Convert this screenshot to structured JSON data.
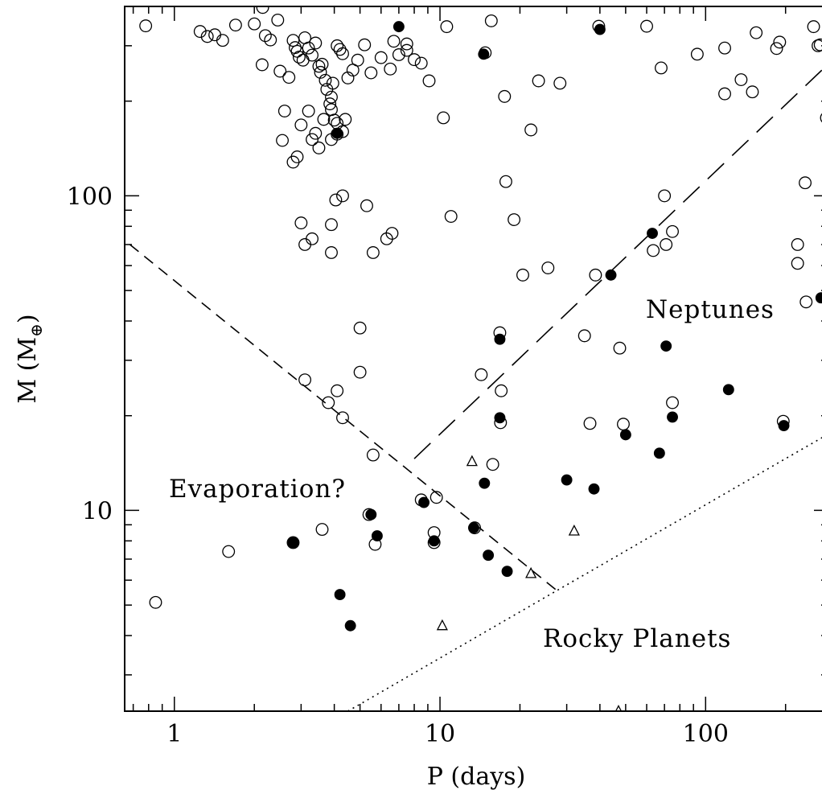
{
  "chart_data": {
    "type": "scatter",
    "xscale": "log",
    "yscale": "log",
    "xlim": [
      0.65,
      290
    ],
    "ylim": [
      2.3,
      400
    ],
    "xlabel": "P (days)",
    "ylabel_main": "M (M",
    "ylabel_sub": "⊕",
    "ylabel_end": ")",
    "x_tick_labels": [
      {
        "value": 1,
        "label": "1"
      },
      {
        "value": 10,
        "label": "10"
      },
      {
        "value": 100,
        "label": "100"
      }
    ],
    "y_tick_labels": [
      {
        "value": 10,
        "label": "10"
      },
      {
        "value": 100,
        "label": "100"
      }
    ],
    "annotations": {
      "evaporation": "Evaporation?",
      "neptunes": "Neptunes",
      "rocky": "Rocky Planets"
    },
    "boundary_lines": [
      {
        "style": "short-dash",
        "points": [
          [
            0.68,
            70
          ],
          [
            28,
            5.5
          ]
        ]
      },
      {
        "style": "long-dash",
        "points": [
          [
            8.0,
            14.6
          ],
          [
            300,
            270
          ]
        ]
      },
      {
        "style": "dotted",
        "points": [
          [
            4.5,
            2.3
          ],
          [
            290,
            17.5
          ]
        ]
      }
    ],
    "series": [
      {
        "marker": "open-circle",
        "points": [
          [
            0.78,
            347
          ],
          [
            1.25,
            333
          ],
          [
            1.33,
            321
          ],
          [
            1.42,
            325
          ],
          [
            1.52,
            312
          ],
          [
            1.7,
            349
          ],
          [
            2.0,
            352
          ],
          [
            2.14,
            261
          ],
          [
            2.2,
            323
          ],
          [
            2.3,
            313
          ],
          [
            2.45,
            362
          ],
          [
            2.5,
            249
          ],
          [
            2.7,
            238
          ],
          [
            2.8,
            312
          ],
          [
            2.85,
            296
          ],
          [
            2.9,
            288
          ],
          [
            2.95,
            276
          ],
          [
            3.05,
            270
          ],
          [
            3.1,
            318
          ],
          [
            3.2,
            295
          ],
          [
            3.3,
            280
          ],
          [
            3.4,
            306
          ],
          [
            3.5,
            258
          ],
          [
            3.55,
            247
          ],
          [
            3.6,
            262
          ],
          [
            3.7,
            233
          ],
          [
            3.75,
            218
          ],
          [
            3.85,
            196
          ],
          [
            3.9,
            206
          ],
          [
            3.95,
            228
          ],
          [
            4.1,
            300
          ],
          [
            4.2,
            292
          ],
          [
            4.3,
            283
          ],
          [
            4.5,
            237
          ],
          [
            4.7,
            251
          ],
          [
            4.9,
            270
          ],
          [
            5.2,
            302
          ],
          [
            5.5,
            246
          ],
          [
            6.0,
            275
          ],
          [
            6.5,
            253
          ],
          [
            7.0,
            281
          ],
          [
            7.5,
            304
          ],
          [
            8.0,
            271
          ],
          [
            8.5,
            264
          ],
          [
            2.15,
            397
          ],
          [
            2.6,
            186
          ],
          [
            2.55,
            150
          ],
          [
            2.8,
            128
          ],
          [
            2.9,
            133
          ],
          [
            3.0,
            168
          ],
          [
            3.2,
            186
          ],
          [
            3.4,
            158
          ],
          [
            3.5,
            142
          ],
          [
            3.65,
            175
          ],
          [
            3.9,
            188
          ],
          [
            3.9,
            151
          ],
          [
            4.0,
            174
          ],
          [
            4.1,
            157
          ],
          [
            4.3,
            160
          ],
          [
            4.4,
            175
          ],
          [
            4.1,
            170
          ],
          [
            3.3,
            151
          ],
          [
            4.05,
            97
          ],
          [
            4.3,
            100
          ],
          [
            5.3,
            93
          ],
          [
            3.0,
            82
          ],
          [
            3.9,
            81
          ],
          [
            3.3,
            73
          ],
          [
            3.1,
            70
          ],
          [
            3.9,
            66
          ],
          [
            5.6,
            66
          ],
          [
            6.3,
            73
          ],
          [
            6.6,
            76
          ],
          [
            6.7,
            310
          ],
          [
            7.5,
            290
          ],
          [
            9.1,
            232
          ],
          [
            10.3,
            177
          ],
          [
            10.6,
            345
          ],
          [
            11.0,
            86
          ],
          [
            14.8,
            285
          ],
          [
            15.6,
            360
          ],
          [
            17.5,
            207
          ],
          [
            17.7,
            111
          ],
          [
            19.0,
            84
          ],
          [
            20.5,
            56
          ],
          [
            22.0,
            162
          ],
          [
            23.5,
            232
          ],
          [
            25.5,
            59
          ],
          [
            28.3,
            228
          ],
          [
            39.6,
            346
          ],
          [
            38.5,
            56
          ],
          [
            35.0,
            35.9
          ],
          [
            47.5,
            32.8
          ],
          [
            60.0,
            346
          ],
          [
            63.5,
            67
          ],
          [
            70.0,
            100
          ],
          [
            68.0,
            255
          ],
          [
            71.0,
            70
          ],
          [
            75.0,
            77
          ],
          [
            93.0,
            282
          ],
          [
            118,
            211
          ],
          [
            118,
            295
          ],
          [
            136,
            234
          ],
          [
            150,
            214
          ],
          [
            155,
            330
          ],
          [
            185,
            294
          ],
          [
            190,
            308
          ],
          [
            222,
            70
          ],
          [
            222,
            61
          ],
          [
            237,
            110
          ],
          [
            255,
            345
          ],
          [
            265,
            300
          ],
          [
            270,
            302
          ],
          [
            285,
            177
          ],
          [
            5.0,
            38
          ],
          [
            5.0,
            27.5
          ],
          [
            3.1,
            26
          ],
          [
            4.1,
            24
          ],
          [
            3.8,
            22
          ],
          [
            4.3,
            19.7
          ],
          [
            5.6,
            15
          ],
          [
            14.3,
            27
          ],
          [
            15.8,
            14
          ],
          [
            17.0,
            24
          ],
          [
            16.9,
            19
          ],
          [
            16.8,
            36.7
          ],
          [
            36.7,
            18.9
          ],
          [
            49.0,
            18.8
          ],
          [
            75.0,
            22
          ],
          [
            196,
            19.2
          ],
          [
            8.5,
            10.8
          ],
          [
            9.7,
            11
          ],
          [
            9.5,
            8.5
          ],
          [
            9.5,
            7.9
          ],
          [
            5.7,
            7.8
          ],
          [
            5.4,
            9.7
          ],
          [
            3.6,
            8.7
          ],
          [
            1.6,
            7.4
          ],
          [
            0.85,
            5.1
          ],
          [
            2.8,
            7.9
          ],
          [
            13.5,
            8.8
          ],
          [
            239,
            46
          ]
        ]
      },
      {
        "marker": "filled-circle",
        "points": [
          [
            7.0,
            345
          ],
          [
            4.1,
            158
          ],
          [
            14.6,
            282
          ],
          [
            40.0,
            338
          ],
          [
            16.8,
            35
          ],
          [
            44.0,
            56
          ],
          [
            63.0,
            76
          ],
          [
            71.0,
            33.3
          ],
          [
            272,
            47.4
          ],
          [
            5.5,
            9.7
          ],
          [
            5.8,
            8.3
          ],
          [
            8.7,
            10.6
          ],
          [
            9.5,
            8.0
          ],
          [
            13.4,
            8.8
          ],
          [
            14.7,
            12.2
          ],
          [
            15.2,
            7.2
          ],
          [
            17.9,
            6.4
          ],
          [
            16.8,
            19.7
          ],
          [
            30.0,
            12.5
          ],
          [
            38.0,
            11.7
          ],
          [
            50.0,
            17.4
          ],
          [
            67.0,
            15.2
          ],
          [
            75.0,
            19.8
          ],
          [
            122,
            24.2
          ],
          [
            197,
            18.6
          ],
          [
            2.8,
            7.9
          ],
          [
            4.2,
            5.4
          ],
          [
            4.6,
            4.3
          ]
        ]
      },
      {
        "marker": "open-triangle",
        "points": [
          [
            13.2,
            14.3
          ],
          [
            10.2,
            4.3
          ],
          [
            22.0,
            6.3
          ],
          [
            32.0,
            8.6
          ],
          [
            47.0,
            2.3
          ]
        ]
      }
    ]
  }
}
